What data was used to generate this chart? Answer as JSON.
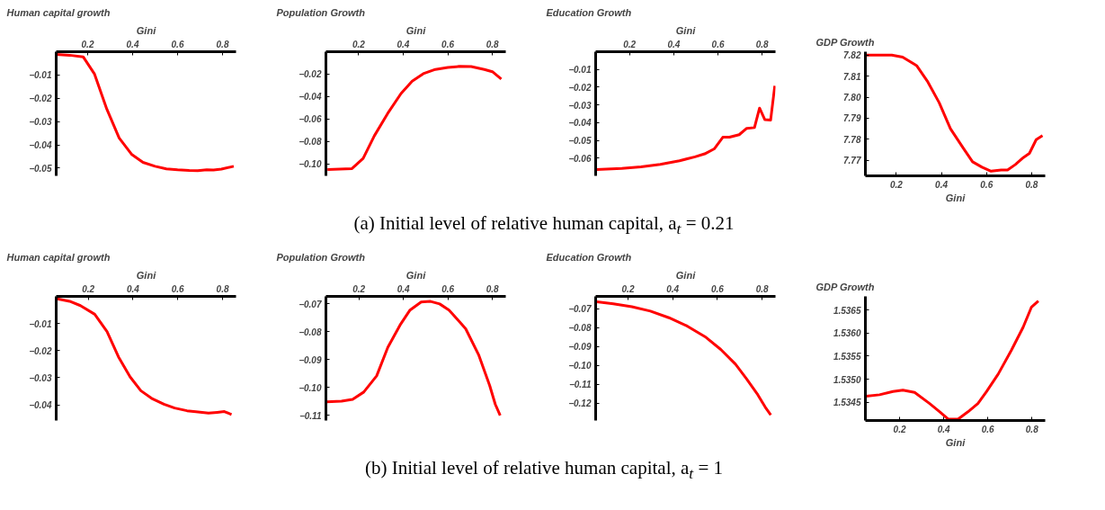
{
  "chart_data": [
    {
      "type": "line",
      "title": "Human capital growth",
      "xlabel": "Gini",
      "xlim": [
        0.06,
        0.86
      ],
      "ylim": [
        -0.0533,
        0
      ],
      "xticks": [
        0.2,
        0.4,
        0.6,
        0.8
      ],
      "yticks": [
        {
          "value": -0.01,
          "label": "−0.01"
        },
        {
          "value": -0.02,
          "label": "−0.02"
        },
        {
          "value": -0.03,
          "label": "−0.03"
        },
        {
          "value": -0.04,
          "label": "−0.04"
        },
        {
          "value": -0.05,
          "label": "−0.05"
        }
      ],
      "grid": false,
      "x": [
        0.06,
        0.12,
        0.18,
        0.23,
        0.285,
        0.34,
        0.395,
        0.446,
        0.5,
        0.55,
        0.6,
        0.652,
        0.69,
        0.73,
        0.76,
        0.795,
        0.85
      ],
      "series": [
        {
          "color": "#ff0000",
          "values": [
            -0.0012,
            -0.0015,
            -0.0022,
            -0.0095,
            -0.0246,
            -0.037,
            -0.044,
            -0.0475,
            -0.0492,
            -0.0503,
            -0.0507,
            -0.051,
            -0.0511,
            -0.0507,
            -0.0508,
            -0.0504,
            -0.0492
          ]
        }
      ]
    },
    {
      "type": "line",
      "title": "Population Growth",
      "xlabel": "Gini",
      "xlim": [
        0.053,
        0.86
      ],
      "ylim": [
        -0.1107,
        0
      ],
      "xticks": [
        0.2,
        0.4,
        0.6,
        0.8
      ],
      "yticks": [
        {
          "value": -0.02,
          "label": "−0.02"
        },
        {
          "value": -0.04,
          "label": "−0.04"
        },
        {
          "value": -0.06,
          "label": "−0.06"
        },
        {
          "value": -0.08,
          "label": "−0.08"
        },
        {
          "value": -0.1,
          "label": "−0.10"
        }
      ],
      "grid": false,
      "x": [
        0.06,
        0.17,
        0.22,
        0.27,
        0.33,
        0.39,
        0.44,
        0.49,
        0.544,
        0.6,
        0.654,
        0.705,
        0.764,
        0.8,
        0.84
      ],
      "series": [
        {
          "color": "#ff0000",
          "values": [
            -0.1051,
            -0.1042,
            -0.0951,
            -0.0751,
            -0.0551,
            -0.0373,
            -0.0262,
            -0.0196,
            -0.0158,
            -0.014,
            -0.0131,
            -0.0133,
            -0.0158,
            -0.0178,
            -0.0244
          ]
        }
      ]
    },
    {
      "type": "line",
      "title": "Education Growth",
      "xlabel": "Gini",
      "xlim": [
        0.047,
        0.86
      ],
      "ylim": [
        -0.07,
        0
      ],
      "xticks": [
        0.2,
        0.4,
        0.6,
        0.8
      ],
      "yticks": [
        {
          "value": -0.01,
          "label": "−0.01"
        },
        {
          "value": -0.02,
          "label": "−0.02"
        },
        {
          "value": -0.03,
          "label": "−0.03"
        },
        {
          "value": -0.04,
          "label": "−0.04"
        },
        {
          "value": -0.05,
          "label": "−0.05"
        },
        {
          "value": -0.06,
          "label": "−0.06"
        }
      ],
      "grid": false,
      "x": [
        0.05,
        0.165,
        0.252,
        0.339,
        0.426,
        0.496,
        0.54,
        0.583,
        0.622,
        0.652,
        0.696,
        0.73,
        0.765,
        0.788,
        0.812,
        0.838,
        0.857
      ],
      "series": [
        {
          "color": "#ff0000",
          "values": [
            -0.0665,
            -0.0658,
            -0.0649,
            -0.0635,
            -0.0615,
            -0.0593,
            -0.0576,
            -0.0548,
            -0.0482,
            -0.0482,
            -0.0468,
            -0.0432,
            -0.0428,
            -0.0318,
            -0.0383,
            -0.0386,
            -0.0192
          ]
        }
      ]
    },
    {
      "type": "line",
      "title": "GDP Growth",
      "xlabel": "Gini",
      "xlim": [
        0.063,
        0.86
      ],
      "ylim": [
        7.7626,
        7.8216
      ],
      "xticks": [
        0.2,
        0.4,
        0.6,
        0.8
      ],
      "yticks": [
        {
          "value": 7.77,
          "label": "7.77"
        },
        {
          "value": 7.78,
          "label": "7.78"
        },
        {
          "value": 7.79,
          "label": "7.79"
        },
        {
          "value": 7.8,
          "label": "7.80"
        },
        {
          "value": 7.81,
          "label": "7.81"
        },
        {
          "value": 7.82,
          "label": "7.82"
        }
      ],
      "grid": false,
      "annotations": [
        "(a) Initial level of relative human capital, a$_{t}$ = 0.21"
      ],
      "x": [
        0.066,
        0.18,
        0.228,
        0.29,
        0.34,
        0.39,
        0.44,
        0.496,
        0.538,
        0.58,
        0.62,
        0.665,
        0.693,
        0.728,
        0.763,
        0.79,
        0.82,
        0.848
      ],
      "series": [
        {
          "color": "#ff0000",
          "values": [
            7.82,
            7.82,
            7.819,
            7.815,
            7.8072,
            7.7974,
            7.785,
            7.7759,
            7.7693,
            7.7667,
            7.7648,
            7.7654,
            7.7654,
            7.768,
            7.7713,
            7.7733,
            7.7798,
            7.7817
          ]
        }
      ]
    },
    {
      "type": "line",
      "title": "Human capital growth",
      "xlabel": "Gini",
      "xlim": [
        0.057,
        0.86
      ],
      "ylim": [
        -0.0458,
        0
      ],
      "xticks": [
        0.2,
        0.4,
        0.6,
        0.8
      ],
      "yticks": [
        {
          "value": -0.01,
          "label": "−0.01"
        },
        {
          "value": -0.02,
          "label": "−0.02"
        },
        {
          "value": -0.03,
          "label": "−0.03"
        },
        {
          "value": -0.04,
          "label": "−0.04"
        }
      ],
      "grid": false,
      "x": [
        0.062,
        0.117,
        0.165,
        0.229,
        0.284,
        0.335,
        0.387,
        0.435,
        0.487,
        0.538,
        0.586,
        0.641,
        0.681,
        0.737,
        0.776,
        0.808,
        0.84
      ],
      "series": [
        {
          "color": "#ff0000",
          "values": [
            -0.0009,
            -0.0018,
            -0.0034,
            -0.0066,
            -0.013,
            -0.0223,
            -0.0297,
            -0.0348,
            -0.0378,
            -0.0398,
            -0.0412,
            -0.0422,
            -0.0426,
            -0.0431,
            -0.0428,
            -0.0425,
            -0.0436
          ]
        }
      ]
    },
    {
      "type": "line",
      "title": "Population Growth",
      "xlabel": "Gini",
      "xlim": [
        0.052,
        0.86
      ],
      "ylim": [
        -0.1118,
        -0.0673
      ],
      "xticks": [
        0.2,
        0.4,
        0.6,
        0.8
      ],
      "yticks": [
        {
          "value": -0.07,
          "label": "−0.07"
        },
        {
          "value": -0.08,
          "label": "−0.08"
        },
        {
          "value": -0.09,
          "label": "−0.09"
        },
        {
          "value": -0.1,
          "label": "−0.10"
        },
        {
          "value": -0.11,
          "label": "−0.11"
        }
      ],
      "grid": false,
      "x": [
        0.055,
        0.122,
        0.172,
        0.222,
        0.28,
        0.33,
        0.385,
        0.43,
        0.48,
        0.522,
        0.563,
        0.605,
        0.68,
        0.738,
        0.788,
        0.813,
        0.835
      ],
      "series": [
        {
          "color": "#ff0000",
          "values": [
            -0.1051,
            -0.1049,
            -0.1042,
            -0.1016,
            -0.0958,
            -0.0856,
            -0.0776,
            -0.0722,
            -0.0693,
            -0.0691,
            -0.07,
            -0.0722,
            -0.0789,
            -0.0882,
            -0.0993,
            -0.106,
            -0.11
          ]
        }
      ]
    },
    {
      "type": "line",
      "title": "Education Growth",
      "xlabel": "Gini",
      "xlim": [
        0.055,
        0.86
      ],
      "ylim": [
        -0.1292,
        -0.0635
      ],
      "xticks": [
        0.2,
        0.4,
        0.6,
        0.8
      ],
      "yticks": [
        {
          "value": -0.07,
          "label": "−0.07"
        },
        {
          "value": -0.08,
          "label": "−0.08"
        },
        {
          "value": -0.09,
          "label": "−0.09"
        },
        {
          "value": -0.1,
          "label": "−0.10"
        },
        {
          "value": -0.11,
          "label": "−0.11"
        },
        {
          "value": -0.12,
          "label": "−0.12"
        }
      ],
      "grid": false,
      "x": [
        0.06,
        0.134,
        0.217,
        0.3,
        0.383,
        0.466,
        0.549,
        0.615,
        0.681,
        0.731,
        0.781,
        0.814,
        0.839
      ],
      "series": [
        {
          "color": "#ff0000",
          "values": [
            -0.0664,
            -0.0674,
            -0.069,
            -0.0713,
            -0.0748,
            -0.0793,
            -0.0852,
            -0.0916,
            -0.0994,
            -0.1072,
            -0.1156,
            -0.1221,
            -0.1263
          ]
        }
      ]
    },
    {
      "type": "line",
      "title": "GDP Growth",
      "xlabel": "Gini",
      "xlim": [
        0.045,
        0.86
      ],
      "ylim": [
        1.5341,
        1.5368
      ],
      "xticks": [
        0.2,
        0.4,
        0.6,
        0.8
      ],
      "yticks": [
        {
          "value": 1.5345,
          "label": "1.5345"
        },
        {
          "value": 1.535,
          "label": "1.5350"
        },
        {
          "value": 1.5355,
          "label": "1.5355"
        },
        {
          "value": 1.536,
          "label": "1.5360"
        },
        {
          "value": 1.5365,
          "label": "1.5365"
        }
      ],
      "grid": false,
      "annotations": [
        "(b) Initial level of relative human capital, a$_{t}$ = 1"
      ],
      "x": [
        0.048,
        0.109,
        0.17,
        0.215,
        0.268,
        0.336,
        0.382,
        0.42,
        0.465,
        0.51,
        0.555,
        0.594,
        0.647,
        0.707,
        0.76,
        0.798,
        0.829
      ],
      "series": [
        {
          "color": "#ff0000",
          "values": [
            1.53463,
            1.53466,
            1.53473,
            1.53476,
            1.53471,
            1.53447,
            1.53429,
            1.53413,
            1.53413,
            1.53429,
            1.53447,
            1.53473,
            1.53511,
            1.53563,
            1.53613,
            1.53657,
            1.5367
          ]
        }
      ]
    }
  ]
}
